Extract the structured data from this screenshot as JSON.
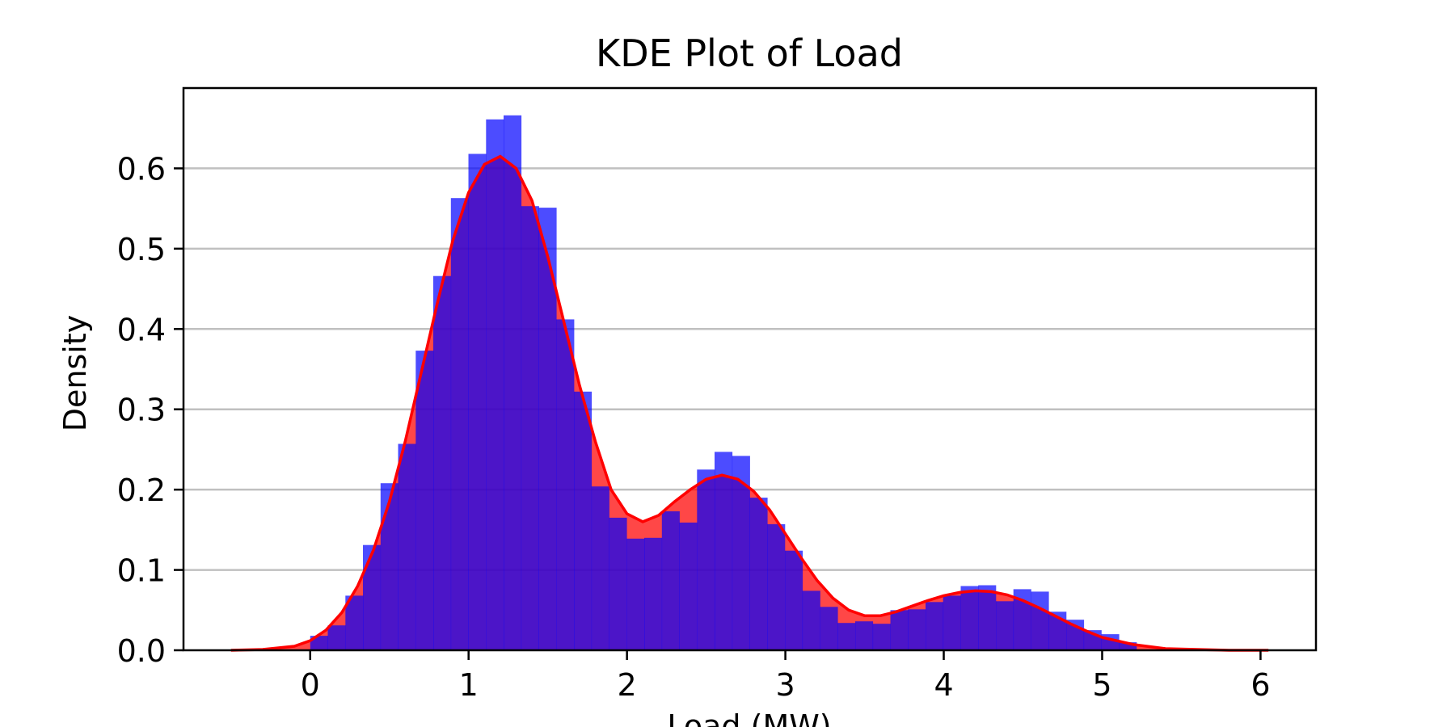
{
  "chart_data": {
    "type": "area",
    "title": "KDE Plot of Load",
    "xlabel": "Load (MW)",
    "ylabel": "Density",
    "xlim": [
      -0.8,
      6.35
    ],
    "ylim": [
      0,
      0.7
    ],
    "xticks": [
      0,
      1,
      2,
      3,
      4,
      5,
      6
    ],
    "yticks": [
      0.0,
      0.1,
      0.2,
      0.3,
      0.4,
      0.5,
      0.6
    ],
    "ytick_labels": [
      "0.0",
      "0.1",
      "0.2",
      "0.3",
      "0.4",
      "0.5",
      "0.6"
    ],
    "grid": "horizontal",
    "colors": {
      "kde_line": "#ff0000",
      "kde_fill": "#ff0000",
      "hist": "#0000ff",
      "grid": "#c0c0c0"
    },
    "histogram": {
      "bin_width": 0.111,
      "bins_start": 0.0,
      "density": [
        0.018,
        0.031,
        0.068,
        0.131,
        0.208,
        0.257,
        0.373,
        0.466,
        0.563,
        0.618,
        0.661,
        0.666,
        0.553,
        0.551,
        0.412,
        0.322,
        0.204,
        0.165,
        0.139,
        0.14,
        0.173,
        0.159,
        0.225,
        0.247,
        0.242,
        0.19,
        0.157,
        0.124,
        0.074,
        0.054,
        0.034,
        0.036,
        0.033,
        0.05,
        0.051,
        0.06,
        0.068,
        0.08,
        0.081,
        0.061,
        0.076,
        0.073,
        0.048,
        0.038,
        0.025,
        0.02,
        0.01
      ]
    },
    "kde": {
      "x": [
        -0.5,
        -0.3,
        -0.1,
        0.0,
        0.1,
        0.2,
        0.3,
        0.4,
        0.5,
        0.6,
        0.7,
        0.8,
        0.9,
        1.0,
        1.1,
        1.2,
        1.3,
        1.4,
        1.5,
        1.6,
        1.7,
        1.8,
        1.9,
        2.0,
        2.1,
        2.2,
        2.3,
        2.4,
        2.5,
        2.6,
        2.7,
        2.8,
        2.9,
        3.0,
        3.1,
        3.2,
        3.3,
        3.4,
        3.5,
        3.6,
        3.7,
        3.8,
        3.9,
        4.0,
        4.1,
        4.2,
        4.3,
        4.4,
        4.5,
        4.6,
        4.7,
        4.8,
        4.9,
        5.0,
        5.2,
        5.4,
        5.6,
        5.8,
        6.05
      ],
      "y": [
        0.0,
        0.001,
        0.005,
        0.012,
        0.025,
        0.047,
        0.08,
        0.125,
        0.185,
        0.26,
        0.345,
        0.43,
        0.51,
        0.57,
        0.605,
        0.615,
        0.6,
        0.56,
        0.49,
        0.41,
        0.33,
        0.26,
        0.2,
        0.17,
        0.16,
        0.168,
        0.185,
        0.2,
        0.213,
        0.218,
        0.213,
        0.198,
        0.175,
        0.145,
        0.115,
        0.087,
        0.065,
        0.05,
        0.043,
        0.043,
        0.048,
        0.055,
        0.062,
        0.068,
        0.072,
        0.074,
        0.073,
        0.069,
        0.062,
        0.053,
        0.043,
        0.033,
        0.024,
        0.016,
        0.007,
        0.002,
        0.001,
        0.0,
        0.0
      ]
    }
  }
}
